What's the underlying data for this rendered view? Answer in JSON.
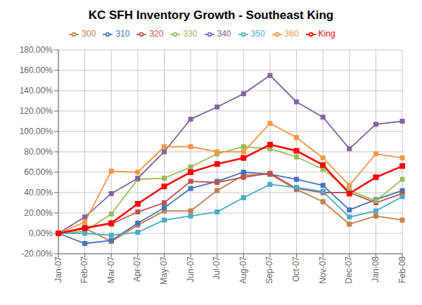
{
  "chart_data": {
    "type": "line",
    "title": "KC SFH Inventory Growth - Southeast King",
    "categories": [
      "Jan-07",
      "Feb-07",
      "Mar-07",
      "Apr-07",
      "May-07",
      "Jun-07",
      "Jul-07",
      "Aug-07",
      "Sep-07",
      "Oct-07",
      "Nov-07",
      "Dec-07",
      "Jan-08",
      "Feb-08"
    ],
    "series": [
      {
        "name": "300",
        "color": "#C0804C",
        "marker": "square",
        "values": [
          0.0,
          0.05,
          -0.08,
          0.08,
          0.22,
          0.22,
          0.42,
          0.57,
          0.58,
          0.43,
          0.31,
          0.09,
          0.17,
          0.13
        ]
      },
      {
        "name": "310",
        "color": "#4472C4",
        "marker": "square",
        "values": [
          0.0,
          -0.1,
          -0.07,
          0.1,
          0.25,
          0.44,
          0.51,
          0.6,
          0.58,
          0.53,
          0.47,
          0.23,
          0.33,
          0.42
        ]
      },
      {
        "name": "320",
        "color": "#C0504D",
        "marker": "square",
        "values": [
          0.0,
          0.06,
          0.09,
          0.21,
          0.3,
          0.51,
          0.5,
          0.55,
          0.59,
          0.44,
          0.4,
          0.4,
          0.3,
          0.39
        ]
      },
      {
        "name": "330",
        "color": "#9BBB59",
        "marker": "square",
        "values": [
          0.0,
          0.02,
          0.19,
          0.53,
          0.54,
          0.65,
          0.78,
          0.85,
          0.83,
          0.75,
          0.63,
          0.42,
          0.32,
          0.53
        ]
      },
      {
        "name": "340",
        "color": "#8064A2",
        "marker": "square",
        "values": [
          0.0,
          0.16,
          0.39,
          0.54,
          0.8,
          1.12,
          1.24,
          1.37,
          1.55,
          1.29,
          1.14,
          0.83,
          1.07,
          1.1
        ]
      },
      {
        "name": "350",
        "color": "#4BACC6",
        "marker": "square",
        "values": [
          0.0,
          0.0,
          -0.02,
          0.01,
          0.13,
          0.17,
          0.21,
          0.35,
          0.48,
          0.45,
          0.41,
          0.16,
          0.22,
          0.36
        ]
      },
      {
        "name": "360",
        "color": "#F79646",
        "marker": "square",
        "values": [
          0.0,
          0.11,
          0.61,
          0.6,
          0.85,
          0.85,
          0.8,
          0.8,
          1.08,
          0.94,
          0.74,
          0.47,
          0.78,
          0.74
        ]
      },
      {
        "name": "King",
        "color": "#FF0000",
        "marker": "square",
        "values": [
          0.0,
          0.05,
          0.1,
          0.29,
          0.46,
          0.6,
          0.68,
          0.74,
          0.87,
          0.81,
          0.67,
          0.39,
          0.55,
          0.66
        ]
      }
    ],
    "ylim": [
      -0.2,
      1.8
    ],
    "yticks": [
      {
        "value": -0.2,
        "label": "-20.00%"
      },
      {
        "value": 0,
        "label": "0.00%"
      },
      {
        "value": 0.2,
        "label": "20.00%"
      },
      {
        "value": 0.4,
        "label": "40.00%"
      },
      {
        "value": 0.6,
        "label": "60.00%"
      },
      {
        "value": 0.8,
        "label": "80.00%"
      },
      {
        "value": 1.0,
        "label": "100.00%"
      },
      {
        "value": 1.2,
        "label": "120.00%"
      },
      {
        "value": 1.4,
        "label": "140.00%"
      },
      {
        "value": 1.6,
        "label": "160.00%"
      },
      {
        "value": 1.8,
        "label": "180.00%"
      }
    ],
    "grid": true,
    "legend": "top"
  }
}
